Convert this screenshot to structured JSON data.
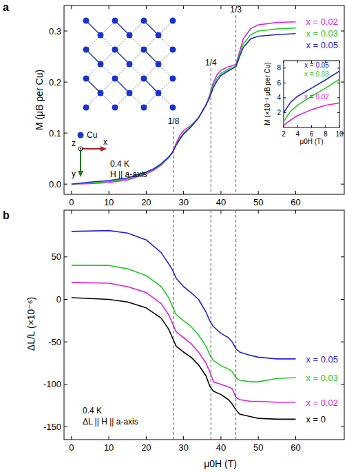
{
  "chart_data": [
    {
      "type": "line",
      "panel_label": "a",
      "y_label": "M (μB per Cu)",
      "xlim": [
        -2,
        73
      ],
      "ylim": [
        -0.02,
        0.35
      ],
      "xticks": [
        0,
        10,
        20,
        30,
        40,
        50,
        60
      ],
      "yticks": [
        {
          "value": 0,
          "label": "0.0"
        },
        {
          "value": 0.1,
          "label": "0.1"
        },
        {
          "value": 0.2,
          "label": "0.2"
        },
        {
          "value": 0.3,
          "label": "0.3"
        }
      ],
      "texts": [
        "0.4 K",
        "H || a-axis"
      ],
      "lattice_labels": [
        "Cu",
        "x",
        "y",
        "z"
      ],
      "annotations": [
        {
          "x": 27.3,
          "y": 0.118,
          "label": "1/8"
        },
        {
          "x": 37.3,
          "y": 0.232,
          "label": "1/4"
        },
        {
          "x": 44.0,
          "y": 0.336,
          "label": "1/3"
        }
      ],
      "x": [
        0,
        5,
        10,
        15,
        20,
        22,
        24,
        26,
        27,
        28,
        29,
        30,
        32,
        34,
        36,
        37,
        38,
        39,
        40,
        42,
        43,
        44,
        45,
        46,
        48,
        50,
        55,
        60
      ],
      "series": [
        {
          "name": "x = 0.02",
          "color": "#e020e0",
          "values": [
            0,
            0.001,
            0.003,
            0.008,
            0.02,
            0.027,
            0.037,
            0.052,
            0.062,
            0.08,
            0.095,
            0.105,
            0.115,
            0.13,
            0.155,
            0.175,
            0.2,
            0.215,
            0.223,
            0.23,
            0.232,
            0.235,
            0.26,
            0.285,
            0.305,
            0.312,
            0.317,
            0.318
          ]
        },
        {
          "name": "x = 0.03",
          "color": "#22cc22",
          "values": [
            0,
            0.002,
            0.005,
            0.01,
            0.022,
            0.029,
            0.038,
            0.052,
            0.062,
            0.077,
            0.09,
            0.1,
            0.113,
            0.13,
            0.155,
            0.172,
            0.195,
            0.208,
            0.217,
            0.225,
            0.228,
            0.232,
            0.255,
            0.275,
            0.293,
            0.3,
            0.304,
            0.306
          ]
        },
        {
          "name": "x = 0.05",
          "color": "#2222dd",
          "values": [
            0,
            0.004,
            0.007,
            0.012,
            0.024,
            0.03,
            0.04,
            0.053,
            0.062,
            0.076,
            0.088,
            0.098,
            0.112,
            0.13,
            0.155,
            0.17,
            0.19,
            0.203,
            0.213,
            0.222,
            0.226,
            0.23,
            0.25,
            0.268,
            0.285,
            0.29,
            0.293,
            0.295
          ]
        }
      ]
    },
    {
      "type": "line",
      "x_label": "μ0H (T)",
      "y_label": "M (×10⁻³ μB per Cu)",
      "xlim": [
        2,
        10
      ],
      "ylim": [
        0,
        9
      ],
      "xticks": [
        2,
        4,
        6,
        8,
        10
      ],
      "yticks": [
        2,
        4,
        6,
        8
      ],
      "x": [
        2,
        3,
        4,
        6,
        8,
        10
      ],
      "series": [
        {
          "name": "x = 0.05",
          "color": "#2222dd",
          "values": [
            2.0,
            3.4,
            4.2,
            5.3,
            6.4,
            7.6
          ]
        },
        {
          "name": "x = 0.03",
          "color": "#22cc22",
          "values": [
            0.8,
            2.2,
            3.0,
            4.2,
            5.3,
            6.5
          ]
        },
        {
          "name": "x = 0.02",
          "color": "#e020e0",
          "values": [
            0.3,
            1.0,
            1.6,
            2.4,
            3.0,
            3.3
          ]
        }
      ]
    },
    {
      "type": "line",
      "panel_label": "b",
      "x_label": "μ0H (T)",
      "y_label": "ΔL/L (×10⁻⁶)",
      "xlim": [
        -2,
        73
      ],
      "ylim": [
        -165,
        105
      ],
      "xticks": [
        0,
        10,
        20,
        30,
        40,
        50,
        60
      ],
      "yticks": [
        -150,
        -100,
        -50,
        0,
        50
      ],
      "texts": [
        "0.4 K",
        "ΔL || H || a-axis"
      ],
      "x": [
        0,
        10,
        15,
        20,
        24,
        26,
        27,
        28,
        30,
        32,
        34,
        36,
        37,
        38,
        40,
        42,
        43,
        44,
        45,
        48,
        50,
        55,
        60
      ],
      "series": [
        {
          "name": "x = 0",
          "color": "#000000",
          "values": [
            2,
            0,
            -3,
            -10,
            -22,
            -35,
            -45,
            -55,
            -62,
            -68,
            -77,
            -90,
            -102,
            -108,
            -112,
            -118,
            -123,
            -130,
            -135,
            -138,
            -140,
            -141,
            -141
          ]
        },
        {
          "name": "x = 0.02",
          "color": "#e020e0",
          "values": [
            20,
            19,
            15,
            8,
            -5,
            -18,
            -28,
            -38,
            -45,
            -52,
            -62,
            -75,
            -85,
            -97,
            -100,
            -103,
            -105,
            -115,
            -118,
            -120,
            -120,
            -121,
            -121
          ]
        },
        {
          "name": "x = 0.03",
          "color": "#22cc22",
          "values": [
            40,
            40,
            36,
            28,
            15,
            2,
            -8,
            -18,
            -25,
            -32,
            -42,
            -55,
            -65,
            -72,
            -78,
            -82,
            -85,
            -92,
            -95,
            -97,
            -97,
            -93,
            -92
          ]
        },
        {
          "name": "x = 0.05",
          "color": "#2222dd",
          "values": [
            80,
            81,
            78,
            70,
            55,
            42,
            35,
            25,
            15,
            8,
            0,
            -15,
            -25,
            -32,
            -40,
            -45,
            -50,
            -58,
            -62,
            -66,
            -68,
            -70,
            -70
          ]
        }
      ]
    }
  ]
}
